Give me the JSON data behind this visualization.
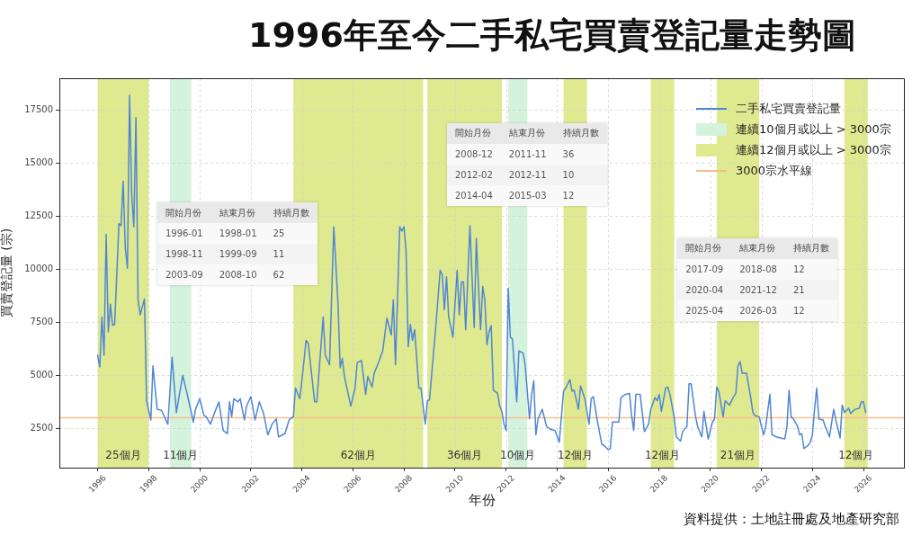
{
  "chart_data": {
    "type": "line",
    "title": "1996年至今二手私宅買賣登記量走勢圖",
    "xlabel": "年份",
    "ylabel": "買賣登記量 (宗)",
    "xlim": [
      "1994-07",
      "2027-08"
    ],
    "xticks": [
      "1996",
      "1998",
      "2000",
      "2002",
      "2004",
      "2006",
      "2008",
      "2010",
      "2012",
      "2014",
      "2016",
      "2018",
      "2020",
      "2022",
      "2024",
      "2026"
    ],
    "ylim": [
      650,
      19000
    ],
    "yticks": [
      2500,
      5000,
      7500,
      10000,
      12500,
      15000,
      17500
    ],
    "grid": true,
    "legend": "top right",
    "series": [
      {
        "name": "二手私宅買賣登記量",
        "color": "#4e86d6",
        "x": [
          "1996-01",
          "1996-02",
          "1996-03",
          "1996-04",
          "1996-05",
          "1996-06",
          "1996-07",
          "1996-08",
          "1996-09",
          "1996-11",
          "1996-12",
          "1997-01",
          "1997-02",
          "1997-03",
          "1997-04",
          "1997-05",
          "1997-06",
          "1997-07",
          "1997-08",
          "1997-09",
          "1997-11",
          "1997-12",
          "1998-02",
          "1998-03",
          "1998-04",
          "1998-05",
          "1998-07",
          "1998-10",
          "1998-12",
          "1999-02",
          "1999-05",
          "1999-07",
          "1999-10",
          "1999-11",
          "2000-01",
          "2000-03",
          "2000-04",
          "2000-06",
          "2000-08",
          "2000-10",
          "2000-12",
          "2001-02",
          "2001-03",
          "2001-04",
          "2001-05",
          "2001-07",
          "2001-08",
          "2001-10",
          "2001-11",
          "2002-01",
          "2002-03",
          "2002-05",
          "2002-07",
          "2002-09",
          "2002-11",
          "2003-01",
          "2003-02",
          "2003-05",
          "2003-07",
          "2003-09",
          "2003-10",
          "2003-12",
          "2004-01",
          "2004-03",
          "2004-04",
          "2004-07",
          "2004-08",
          "2004-11",
          "2004-12",
          "2005-02",
          "2005-04",
          "2005-06",
          "2005-07",
          "2005-08",
          "2005-09",
          "2005-12",
          "2006-02",
          "2006-03",
          "2006-05",
          "2006-07",
          "2006-08",
          "2006-10",
          "2006-11",
          "2007-01",
          "2007-03",
          "2007-05",
          "2007-07",
          "2007-08",
          "2007-09",
          "2007-11",
          "2007-12",
          "2008-01",
          "2008-02",
          "2008-03",
          "2008-04",
          "2008-05",
          "2008-06",
          "2008-08",
          "2008-09",
          "2008-11",
          "2008-12",
          "2009-01",
          "2009-04",
          "2009-06",
          "2009-07",
          "2009-08",
          "2009-09",
          "2009-10",
          "2009-12",
          "2010-02",
          "2010-03",
          "2010-04",
          "2010-05",
          "2010-06",
          "2010-08",
          "2010-10",
          "2010-11",
          "2010-12",
          "2011-01",
          "2011-02",
          "2011-03",
          "2011-04",
          "2011-05",
          "2011-06",
          "2011-07",
          "2011-09",
          "2011-10",
          "2011-11",
          "2011-12",
          "2012-01",
          "2012-02",
          "2012-03",
          "2012-04",
          "2012-06",
          "2012-07",
          "2012-09",
          "2012-10",
          "2012-12",
          "2013-01",
          "2013-02",
          "2013-03",
          "2013-04",
          "2013-06",
          "2013-08",
          "2013-10",
          "2013-12",
          "2014-02",
          "2014-04",
          "2014-05",
          "2014-07",
          "2014-08",
          "2014-09",
          "2014-11",
          "2014-12",
          "2015-02",
          "2015-04",
          "2015-05",
          "2015-06",
          "2015-08",
          "2015-10",
          "2015-11",
          "2016-01",
          "2016-02",
          "2016-03",
          "2016-05",
          "2016-06",
          "2016-07",
          "2016-09",
          "2016-11",
          "2016-12",
          "2017-01",
          "2017-02",
          "2017-04",
          "2017-05",
          "2017-06",
          "2017-08",
          "2017-09",
          "2017-11",
          "2017-12",
          "2018-01",
          "2018-02",
          "2018-04",
          "2018-05",
          "2018-06",
          "2018-08",
          "2018-09",
          "2018-11",
          "2018-12",
          "2019-02",
          "2019-03",
          "2019-04",
          "2019-06",
          "2019-07",
          "2019-09",
          "2019-10",
          "2019-12",
          "2020-02",
          "2020-03",
          "2020-04",
          "2020-05",
          "2020-07",
          "2020-08",
          "2020-10",
          "2020-12",
          "2021-01",
          "2021-02",
          "2021-03",
          "2021-04",
          "2021-06",
          "2021-08",
          "2021-09",
          "2021-10",
          "2021-12",
          "2022-01",
          "2022-02",
          "2022-03",
          "2022-05",
          "2022-06",
          "2022-08",
          "2022-10",
          "2022-12",
          "2023-01",
          "2023-02",
          "2023-03",
          "2023-04",
          "2023-06",
          "2023-07",
          "2023-08",
          "2023-09",
          "2023-11",
          "2023-12",
          "2024-01",
          "2024-02",
          "2024-03",
          "2024-04",
          "2024-06",
          "2024-07",
          "2024-09",
          "2024-11",
          "2024-12",
          "2025-02",
          "2025-03",
          "2025-04",
          "2025-06",
          "2025-07",
          "2025-09",
          "2025-11",
          "2025-12",
          "2026-01",
          "2026-02"
        ],
        "values": [
          5950,
          5400,
          7750,
          5950,
          11650,
          7050,
          8350,
          7350,
          7400,
          12150,
          12050,
          14150,
          11000,
          10050,
          18200,
          13550,
          12000,
          17150,
          8550,
          7850,
          8600,
          3800,
          2900,
          5450,
          4400,
          3400,
          3350,
          2700,
          5850,
          3250,
          5000,
          4150,
          2800,
          3400,
          3900,
          3100,
          3050,
          2700,
          3250,
          3750,
          2400,
          2250,
          3750,
          3050,
          3900,
          3750,
          3900,
          2900,
          3550,
          4000,
          2900,
          3750,
          3200,
          2200,
          2700,
          2950,
          2100,
          2250,
          2900,
          3050,
          4400,
          3900,
          4750,
          6650,
          6500,
          3750,
          3750,
          7750,
          5950,
          5500,
          12000,
          8350,
          5350,
          5800,
          4950,
          3550,
          4400,
          5600,
          5700,
          4100,
          4950,
          4450,
          5100,
          5600,
          6150,
          7700,
          6900,
          8550,
          5500,
          12000,
          11800,
          12000,
          10850,
          6350,
          7400,
          6650,
          7150,
          4400,
          4400,
          2700,
          3800,
          3850,
          7350,
          9950,
          9750,
          8100,
          9650,
          7750,
          6800,
          9950,
          7850,
          9400,
          9400,
          7150,
          12050,
          7250,
          11450,
          9200,
          7150,
          9200,
          8550,
          6450,
          7050,
          7350,
          4300,
          4150,
          3550,
          3300,
          2700,
          2400,
          9100,
          6800,
          6700,
          3750,
          6150,
          6050,
          5450,
          2950,
          4100,
          4750,
          2200,
          2950,
          3400,
          2600,
          2450,
          2400,
          1850,
          4250,
          4400,
          4800,
          4250,
          4300,
          3400,
          4500,
          3900,
          2700,
          3900,
          4000,
          2800,
          1750,
          1700,
          1500,
          1550,
          2800,
          2800,
          2800,
          3950,
          4100,
          4150,
          3100,
          2400,
          4100,
          4100,
          3250,
          2350,
          2700,
          3400,
          3950,
          3800,
          4100,
          3300,
          4400,
          4450,
          4100,
          3050,
          2100,
          1900,
          2350,
          2600,
          4600,
          4600,
          3100,
          2600,
          2100,
          3300,
          2000,
          2800,
          2950,
          4450,
          4250,
          3050,
          3800,
          3600,
          4000,
          4150,
          5450,
          5650,
          5100,
          5100,
          3950,
          3250,
          3100,
          3050,
          2600,
          2200,
          2550,
          4100,
          2200,
          2100,
          2050,
          2000,
          2550,
          4300,
          3050,
          2950,
          2600,
          2200,
          2250,
          1550,
          1700,
          1850,
          2200,
          3400,
          4400,
          2950,
          2900,
          2600,
          2100,
          3400,
          2900,
          2050,
          3600,
          3250,
          3450,
          3200,
          3400,
          3450,
          3750,
          3750,
          3250
        ]
      }
    ],
    "bands": [
      {
        "axis": "x",
        "from": "1998-11",
        "to": "1999-09",
        "label": "11個月",
        "color": "#d4f2dc"
      },
      {
        "axis": "x",
        "from": "2012-02",
        "to": "2012-11",
        "label": "10個月",
        "color": "#d4f2dc"
      },
      {
        "axis": "x",
        "from": "1996-01",
        "to": "1998-01",
        "label": "25個月",
        "color": "#dfe98f"
      },
      {
        "axis": "x",
        "from": "2003-09",
        "to": "2008-10",
        "label": "62個月",
        "color": "#dfe98f"
      },
      {
        "axis": "x",
        "from": "2008-12",
        "to": "2011-11",
        "label": "36個月",
        "color": "#dfe98f"
      },
      {
        "axis": "x",
        "from": "2014-04",
        "to": "2015-03",
        "label": "12個月",
        "color": "#dfe98f"
      },
      {
        "axis": "x",
        "from": "2017-09",
        "to": "2018-08",
        "label": "12個月",
        "color": "#dfe98f"
      },
      {
        "axis": "x",
        "from": "2020-04",
        "to": "2021-12",
        "label": "21個月",
        "color": "#dfe98f"
      },
      {
        "axis": "x",
        "from": "2025-04",
        "to": "2026-03",
        "label": "12個月",
        "color": "#dfe98f"
      }
    ],
    "ref_lines": [
      {
        "axis": "y",
        "value": 3000,
        "label": "3000宗水平線",
        "color": "#f5bf8c"
      }
    ],
    "annotations": [
      "連續10個月或以上 > 3000宗",
      "連續12個月或以上 > 3000宗",
      "開始月份",
      "結束月份",
      "持續月數",
      "1996-01",
      "1998-01",
      "25",
      "1998-11",
      "1999-09",
      "11",
      "2003-09",
      "2008-10",
      "62",
      "開始月份",
      "結束月份",
      "持續月數",
      "2008-12",
      "2011-11",
      "36",
      "2012-02",
      "2012-11",
      "10",
      "2014-04",
      "2015-03",
      "12",
      "開始月份",
      "結束月份",
      "持續月數",
      "2017-09",
      "2018-08",
      "12",
      "2020-04",
      "2021-12",
      "21",
      "2025-04",
      "2026-03",
      "12",
      "資料提供：土地註冊處及地產研究部"
    ]
  }
}
